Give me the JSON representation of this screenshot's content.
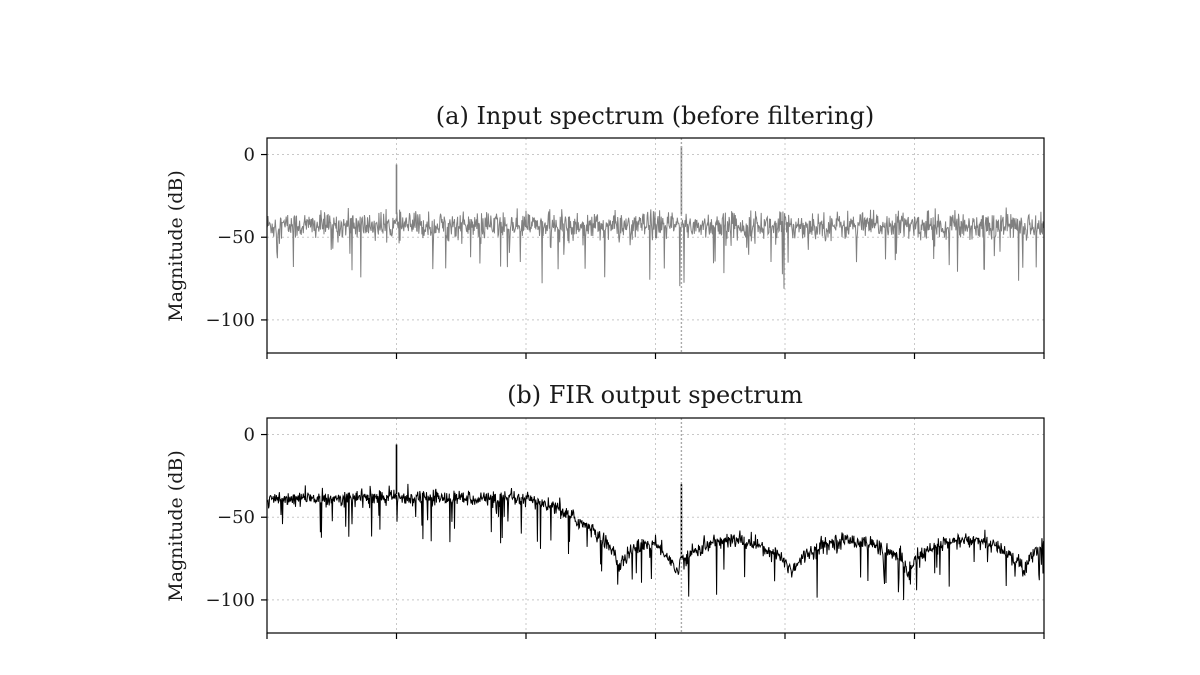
{
  "chart_data": [
    {
      "type": "line",
      "title": "(a) Input spectrum (before filtering)",
      "ylabel": "Magnitude (dB)",
      "xlabel": "",
      "xlim": [
        0,
        6
      ],
      "ylim": [
        -120,
        10
      ],
      "yticks": [
        0,
        -50,
        -100
      ],
      "xticks": [
        0,
        1,
        2,
        3,
        4,
        5,
        6
      ],
      "grid": true,
      "series": [
        {
          "color": "#808080",
          "noise_floor_db": -43,
          "noise_spread_db": 7,
          "deep_dip_min_db": -77
        }
      ],
      "peaks": [
        {
          "x": 1.0,
          "value": -6
        },
        {
          "x": 3.2,
          "value": 5
        }
      ],
      "reference_line": {
        "x": 3.2,
        "style": "dotted",
        "color": "#aaaaaa"
      }
    },
    {
      "type": "line",
      "title": "(b) FIR output spectrum",
      "ylabel": "Magnitude (dB)",
      "xlabel": "",
      "xlim": [
        0,
        6
      ],
      "ylim": [
        -120,
        10
      ],
      "yticks": [
        0,
        -50,
        -100
      ],
      "xticks": [
        0,
        1,
        2,
        3,
        4,
        5,
        6
      ],
      "grid": true,
      "series": [
        {
          "color": "#000000",
          "passband_level_db": -40,
          "stopband_lobe_peak_db": -63,
          "stopband_null_db": -90,
          "deep_dip_min_db": -113
        }
      ],
      "peaks": [
        {
          "x": 1.0,
          "value": -6
        },
        {
          "x": 3.2,
          "value": -30
        }
      ],
      "reference_line": {
        "x": 3.2,
        "style": "dotted",
        "color": "#aaaaaa"
      }
    }
  ]
}
